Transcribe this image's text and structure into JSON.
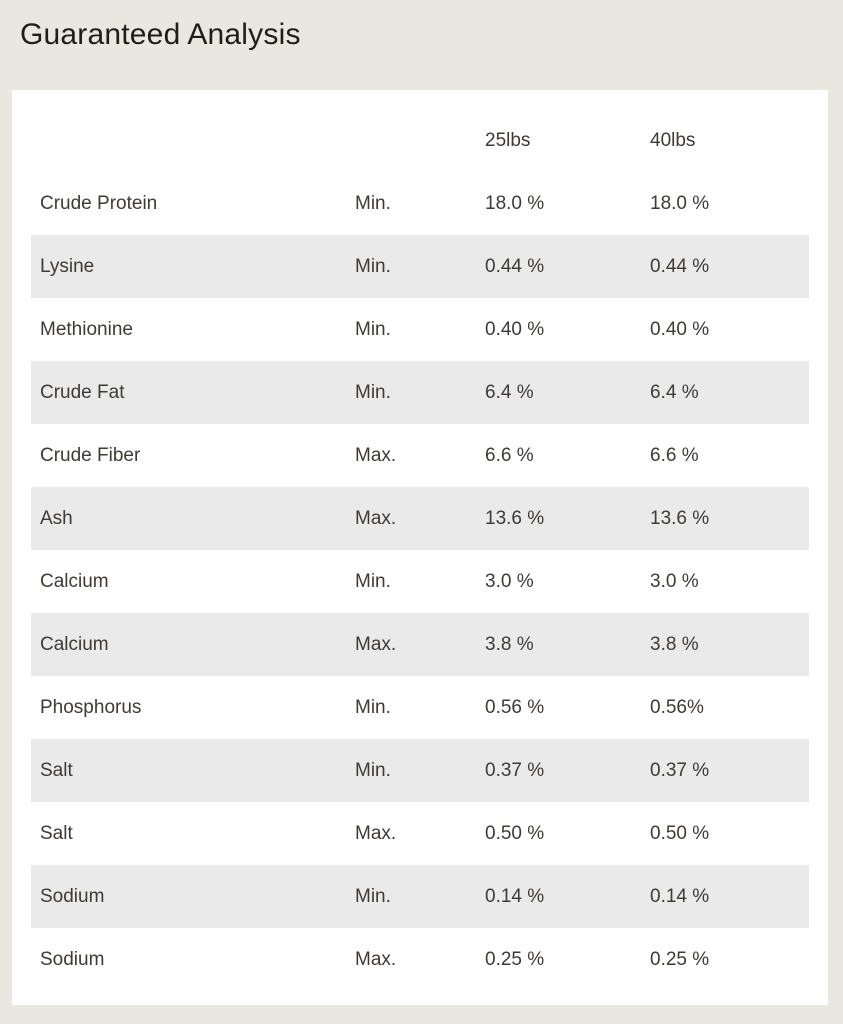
{
  "page": {
    "title": "Guaranteed Analysis",
    "background_color": "#e8e7e0",
    "card_color": "#ffffff",
    "stripe_color": "#eaeaea",
    "text_color": "#3e3a36"
  },
  "table": {
    "header": {
      "col_25lbs": "25lbs",
      "col_40lbs": "40lbs"
    },
    "rows": [
      {
        "nutrient": "Crude Protein",
        "limit": "Min.",
        "v25": "18.0 %",
        "v40": "18.0 %"
      },
      {
        "nutrient": "Lysine",
        "limit": "Min.",
        "v25": "0.44 %",
        "v40": "0.44 %"
      },
      {
        "nutrient": "Methionine",
        "limit": "Min.",
        "v25": "0.40 %",
        "v40": "0.40 %"
      },
      {
        "nutrient": "Crude Fat",
        "limit": "Min.",
        "v25": "6.4 %",
        "v40": "6.4 %"
      },
      {
        "nutrient": "Crude Fiber",
        "limit": "Max.",
        "v25": "6.6 %",
        "v40": "6.6 %"
      },
      {
        "nutrient": "Ash",
        "limit": "Max.",
        "v25": "13.6 %",
        "v40": "13.6 %"
      },
      {
        "nutrient": "Calcium",
        "limit": "Min.",
        "v25": "3.0 %",
        "v40": "3.0 %"
      },
      {
        "nutrient": "Calcium",
        "limit": "Max.",
        "v25": "3.8 %",
        "v40": "3.8 %"
      },
      {
        "nutrient": "Phosphorus",
        "limit": "Min.",
        "v25": "0.56 %",
        "v40": "0.56%"
      },
      {
        "nutrient": "Salt",
        "limit": "Min.",
        "v25": "0.37 %",
        "v40": "0.37 %"
      },
      {
        "nutrient": "Salt",
        "limit": "Max.",
        "v25": "0.50 %",
        "v40": "0.50 %"
      },
      {
        "nutrient": "Sodium",
        "limit": "Min.",
        "v25": "0.14 %",
        "v40": "0.14 %"
      },
      {
        "nutrient": "Sodium",
        "limit": "Max.",
        "v25": "0.25 %",
        "v40": "0.25 %"
      }
    ]
  }
}
